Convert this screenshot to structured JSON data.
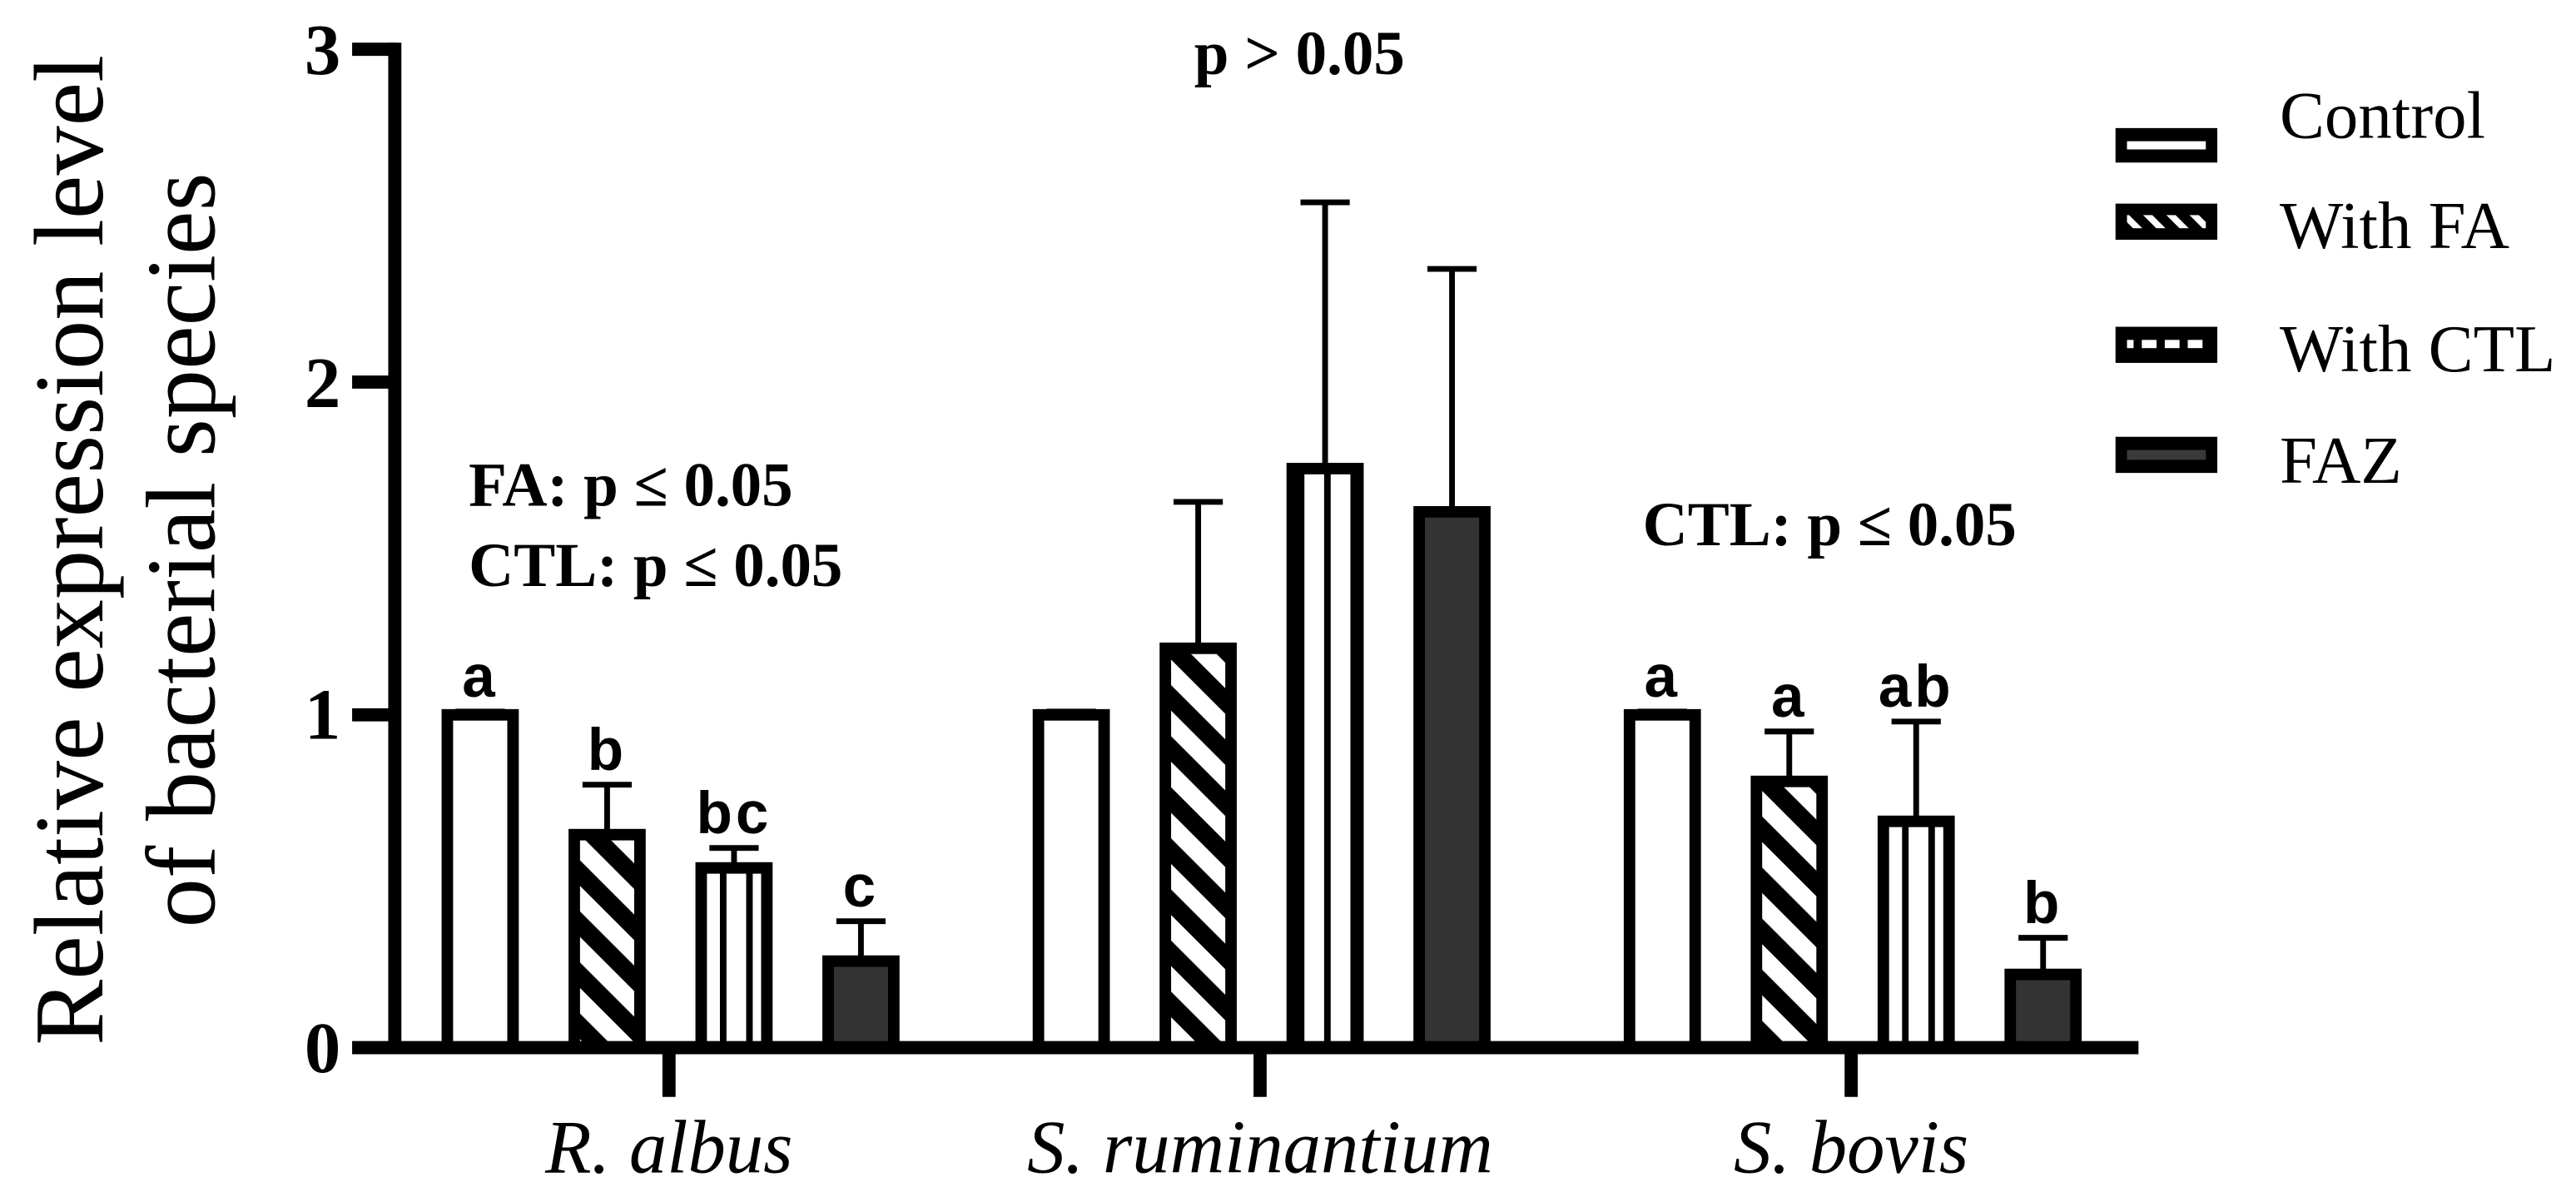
{
  "chart_data": {
    "type": "bar",
    "title": "",
    "xlabel": "",
    "ylabel": [
      "Relative expression level",
      "of bacterial species"
    ],
    "ylim": [
      0,
      3
    ],
    "yticks": [
      0,
      1,
      2,
      3
    ],
    "legend_position": "top-right",
    "categories": [
      "R. albus",
      "S. ruminantium",
      "S. bovis"
    ],
    "series": [
      {
        "name": "Control",
        "pattern": "open",
        "values": [
          1.0,
          1.0,
          1.0
        ],
        "error": [
          0.01,
          0.01,
          0.01
        ],
        "letters": [
          "a",
          "",
          "a"
        ]
      },
      {
        "name": "With FA",
        "pattern": "diagonal-stripes",
        "values": [
          0.64,
          1.2,
          0.8
        ],
        "error": [
          0.15,
          0.44,
          0.15
        ],
        "letters": [
          "b",
          "",
          "a"
        ]
      },
      {
        "name": "With CTL",
        "pattern": "vertical-stripes",
        "values": [
          0.54,
          1.74,
          0.68
        ],
        "error": [
          0.06,
          0.8,
          0.3
        ],
        "letters": [
          "bc",
          "",
          "ab"
        ]
      },
      {
        "name": "FAZ",
        "pattern": "solid-dark",
        "values": [
          0.26,
          1.61,
          0.22
        ],
        "error": [
          0.12,
          0.73,
          0.11
        ],
        "letters": [
          "c",
          "",
          "b"
        ]
      }
    ],
    "annotations": {
      "r_albus": [
        "FA: p ≤ 0.05",
        "CTL: p ≤ 0.05"
      ],
      "s_ruminantium": [
        "p > 0.05"
      ],
      "s_bovis": [
        "CTL: p ≤ 0.05"
      ]
    }
  },
  "colors": {
    "background": "#ffffff",
    "bar_outline": "#000000",
    "dark_fill": "#333333"
  }
}
